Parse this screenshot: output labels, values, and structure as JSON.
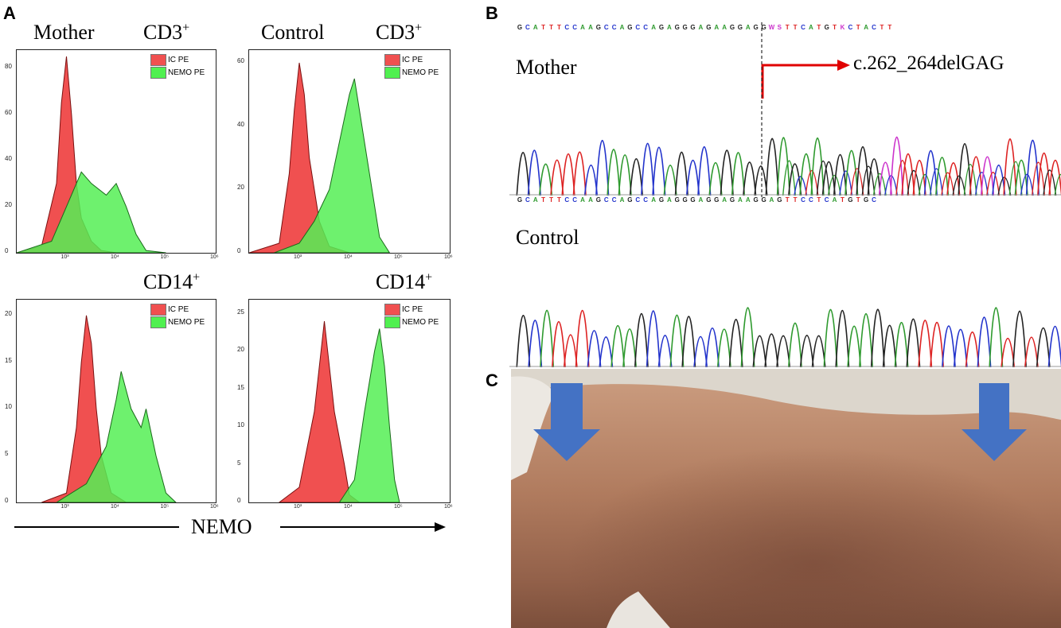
{
  "panels": {
    "a": {
      "letter": "A"
    },
    "b": {
      "letter": "B"
    },
    "c": {
      "letter": "C"
    }
  },
  "panel_a": {
    "label_mother": "Mother",
    "label_control": "Control",
    "cd3": "CD3",
    "cd14": "CD14",
    "superscript": "+",
    "axis_label": "NEMO",
    "legend": [
      {
        "label": "IC PE",
        "color": "#f05050"
      },
      {
        "label": "NEMO PE",
        "color": "#50f050"
      }
    ]
  },
  "chart_data": [
    {
      "type": "area",
      "panel": "mother-cd3",
      "ylim": [
        0,
        85
      ],
      "yticks": [
        "80",
        "60",
        "40",
        "20",
        "0"
      ],
      "xticks": [
        "10³",
        "10⁴",
        "10⁵",
        "10⁶"
      ],
      "series": [
        {
          "name": "IC PE",
          "x": [
            2.0,
            2.5,
            2.8,
            2.9,
            3.0,
            3.1,
            3.2,
            3.3,
            3.5,
            3.7,
            4.0
          ],
          "values": [
            0,
            3,
            30,
            65,
            85,
            60,
            30,
            15,
            5,
            1,
            0
          ]
        },
        {
          "name": "NEMO PE",
          "x": [
            2.0,
            2.7,
            3.0,
            3.3,
            3.5,
            3.8,
            4.0,
            4.2,
            4.4,
            4.6,
            5.0
          ],
          "values": [
            0,
            5,
            20,
            35,
            30,
            25,
            30,
            20,
            8,
            1,
            0
          ]
        }
      ]
    },
    {
      "type": "area",
      "panel": "control-cd3",
      "ylim": [
        0,
        62
      ],
      "yticks": [
        "60",
        "40",
        "20",
        "0"
      ],
      "xticks": [
        "10³",
        "10⁴",
        "10⁵",
        "10⁶"
      ],
      "series": [
        {
          "name": "IC PE",
          "x": [
            2.0,
            2.6,
            2.8,
            2.9,
            3.0,
            3.1,
            3.2,
            3.4,
            3.6,
            4.0
          ],
          "values": [
            0,
            3,
            25,
            45,
            60,
            50,
            30,
            10,
            2,
            0
          ]
        },
        {
          "name": "NEMO PE",
          "x": [
            2.5,
            3.0,
            3.3,
            3.6,
            3.8,
            4.0,
            4.1,
            4.2,
            4.4,
            4.6,
            4.8
          ],
          "values": [
            0,
            3,
            10,
            20,
            35,
            50,
            55,
            45,
            25,
            5,
            0
          ]
        }
      ]
    },
    {
      "type": "area",
      "panel": "mother-cd14",
      "ylim": [
        0,
        21
      ],
      "yticks": [
        "20",
        "15",
        "10",
        "5",
        "0"
      ],
      "xticks": [
        "10³",
        "10⁴",
        "10⁵",
        "10⁶"
      ],
      "series": [
        {
          "name": "IC PE",
          "x": [
            2.5,
            3.0,
            3.2,
            3.3,
            3.4,
            3.5,
            3.6,
            3.7,
            3.9,
            4.2
          ],
          "values": [
            0,
            1,
            8,
            15,
            20,
            17,
            10,
            5,
            1,
            0
          ]
        },
        {
          "name": "NEMO PE",
          "x": [
            2.8,
            3.4,
            3.8,
            4.0,
            4.1,
            4.3,
            4.5,
            4.6,
            4.8,
            5.0,
            5.2
          ],
          "values": [
            0,
            2,
            6,
            11,
            14,
            10,
            8,
            10,
            5,
            1,
            0
          ]
        }
      ]
    },
    {
      "type": "area",
      "panel": "control-cd14",
      "ylim": [
        0,
        26
      ],
      "yticks": [
        "25",
        "20",
        "15",
        "10",
        "5",
        "0"
      ],
      "xticks": [
        "10³",
        "10⁴",
        "10⁵",
        "10⁶"
      ],
      "series": [
        {
          "name": "IC PE",
          "x": [
            2.6,
            3.0,
            3.3,
            3.5,
            3.6,
            3.7,
            3.9,
            4.0,
            4.2
          ],
          "values": [
            0,
            2,
            12,
            24,
            18,
            12,
            5,
            1,
            0
          ]
        },
        {
          "name": "NEMO PE",
          "x": [
            3.8,
            4.1,
            4.3,
            4.5,
            4.6,
            4.7,
            4.8,
            4.9,
            5.0
          ],
          "values": [
            0,
            3,
            12,
            20,
            23,
            18,
            10,
            3,
            0
          ]
        }
      ]
    }
  ],
  "panel_b": {
    "label_mother": "Mother",
    "label_control": "Control",
    "mutation": "c.262_264delGAG",
    "seq_top": "GCATTTCCAAGCCAGCCAGAGGGAGAAGGAGGWSTTCATGTKCTACTT",
    "seq_bottom": "GCATTTCCAAGCCAGCCAGAGGGAGGAGAAGGAGTTCCTCATGTGC",
    "base_colors": {
      "A": "#2e9a2e",
      "C": "#2233cc",
      "G": "#222222",
      "T": "#dd2222",
      "W": "#cc33cc",
      "S": "#cc33cc",
      "K": "#cc33cc"
    }
  },
  "panel_c": {
    "arrow_color": "#4472c4"
  }
}
